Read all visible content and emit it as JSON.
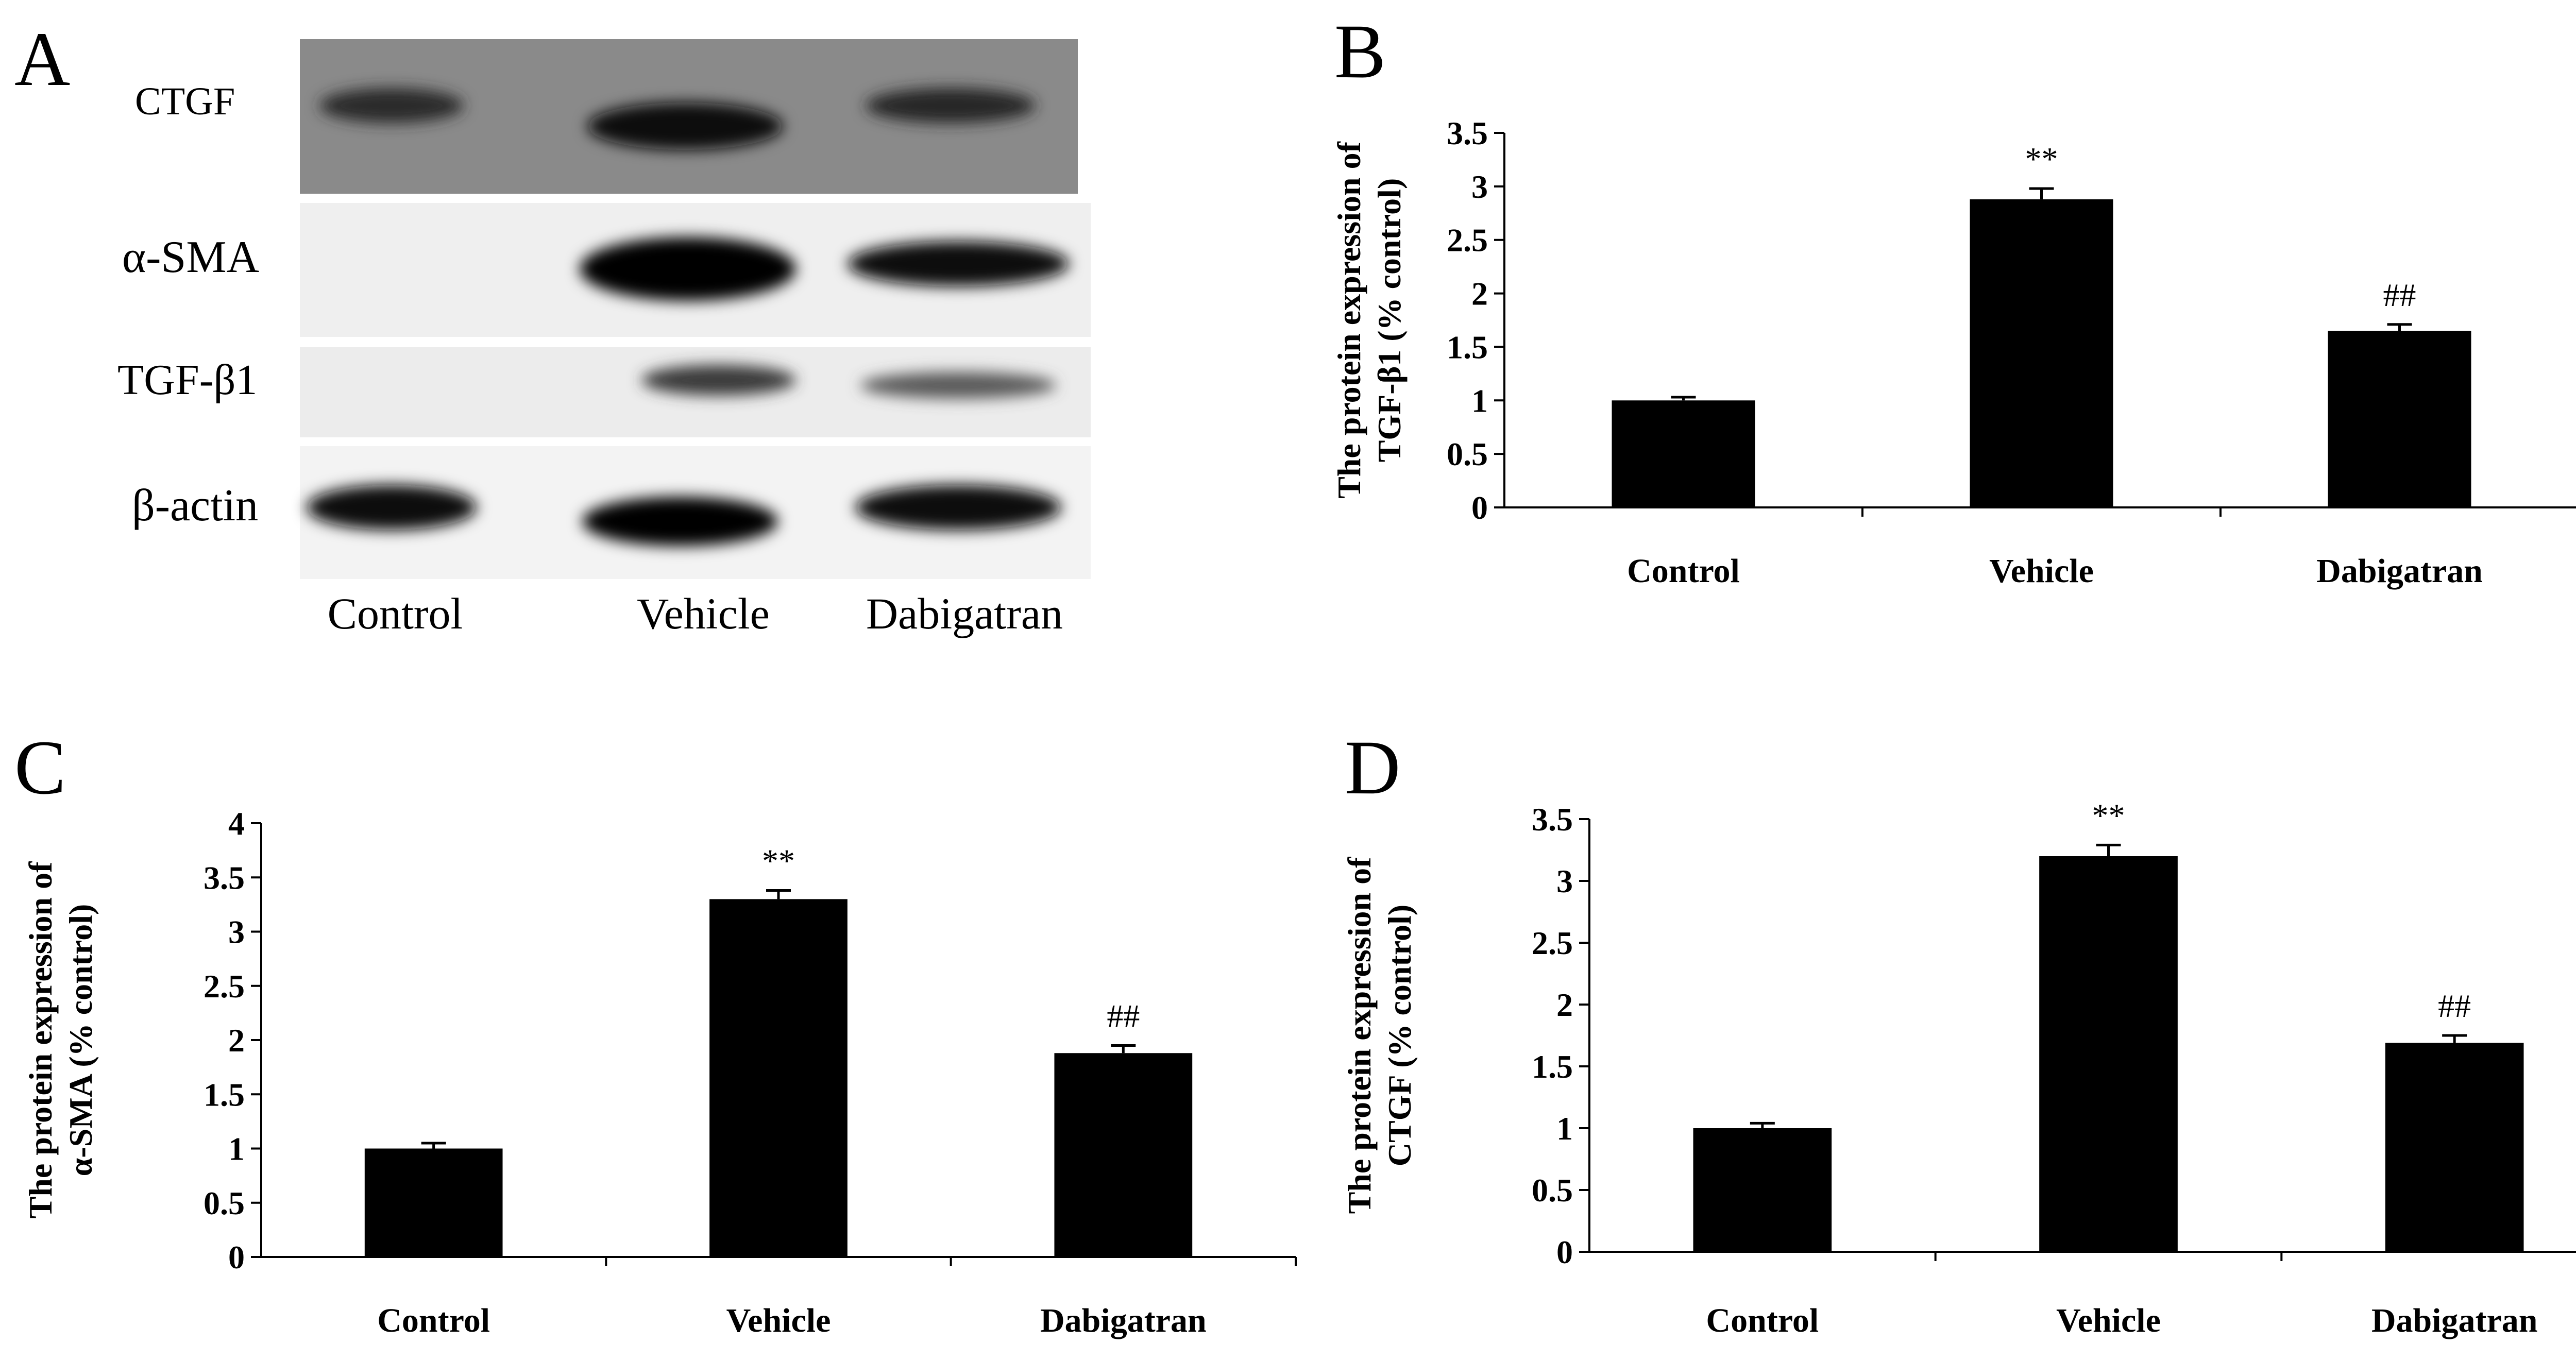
{
  "panel_letters": [
    "A",
    "B",
    "C",
    "D"
  ],
  "blot": {
    "rows": [
      "CTGF",
      "α-SMA",
      "TGF-β1",
      "β-actin"
    ],
    "lanes": [
      "Control",
      "Vehicle",
      "Dabigatran"
    ]
  },
  "chart_data": [
    {
      "panel": "B",
      "type": "bar",
      "categories": [
        "Control",
        "Vehicle",
        "Dabigatran"
      ],
      "values": [
        1.0,
        2.88,
        1.65
      ],
      "errors": [
        0.03,
        0.1,
        0.06
      ],
      "significance": [
        "",
        "**",
        "##"
      ],
      "ylabel_lines": [
        "The protein expression of",
        "TGF-β1 (% control)"
      ],
      "ylim": [
        0,
        3.5
      ],
      "yticks": [
        "0",
        "0.5",
        "1",
        "1.5",
        "2",
        "2.5",
        "3",
        "3.5"
      ],
      "grid": false
    },
    {
      "panel": "C",
      "type": "bar",
      "categories": [
        "Control",
        "Vehicle",
        "Dabigatran"
      ],
      "values": [
        1.0,
        3.3,
        1.88
      ],
      "errors": [
        0.05,
        0.08,
        0.07
      ],
      "significance": [
        "",
        "**",
        "##"
      ],
      "ylabel_lines": [
        "The protein expression of",
        "α-SMA (% control)"
      ],
      "ylim": [
        0,
        4
      ],
      "yticks": [
        "0",
        "0.5",
        "1",
        "1.5",
        "2",
        "2.5",
        "3",
        "3.5",
        "4"
      ],
      "grid": false
    },
    {
      "panel": "D",
      "type": "bar",
      "categories": [
        "Control",
        "Vehicle",
        "Dabigatran"
      ],
      "values": [
        1.0,
        3.2,
        1.69
      ],
      "errors": [
        0.04,
        0.09,
        0.06
      ],
      "significance": [
        "",
        "**",
        "##"
      ],
      "ylabel_lines": [
        "The protein expression of",
        "CTGF (% control)"
      ],
      "ylim": [
        0,
        3.5
      ],
      "yticks": [
        "0",
        "0.5",
        "1",
        "1.5",
        "2",
        "2.5",
        "3",
        "3.5"
      ],
      "grid": false
    }
  ]
}
